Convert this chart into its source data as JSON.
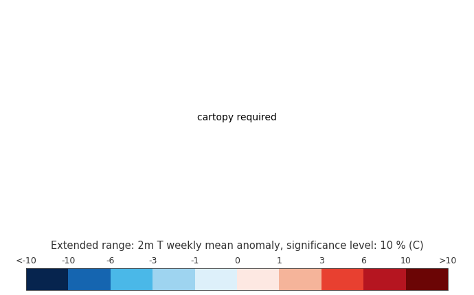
{
  "title": "Extended range: 2m T weekly mean anomaly, significance level: 10 % (C)",
  "colorbar_labels": [
    "<-10",
    "-10",
    "-6",
    "-3",
    "-1",
    "0",
    "1",
    "3",
    "6",
    "10",
    ">10"
  ],
  "colorbar_colors": [
    "#06244e",
    "#1565b0",
    "#4ab8e8",
    "#9ed4f0",
    "#ddf0fa",
    "#fde8e2",
    "#f5b49a",
    "#e84030",
    "#b51520",
    "#6b0505"
  ],
  "bg_color": "#ffffff",
  "title_fontsize": 10.5,
  "label_fontsize": 9,
  "fig_width": 6.9,
  "fig_height": 4.29,
  "dpi": 100,
  "lon_min": -50,
  "lon_max": 80,
  "lat_min": 20,
  "lat_max": 78,
  "central_longitude": 15,
  "grid_lons": [
    -40,
    -20,
    0,
    20,
    40,
    60,
    80
  ],
  "grid_lats": [
    30,
    40,
    50,
    60,
    70
  ]
}
